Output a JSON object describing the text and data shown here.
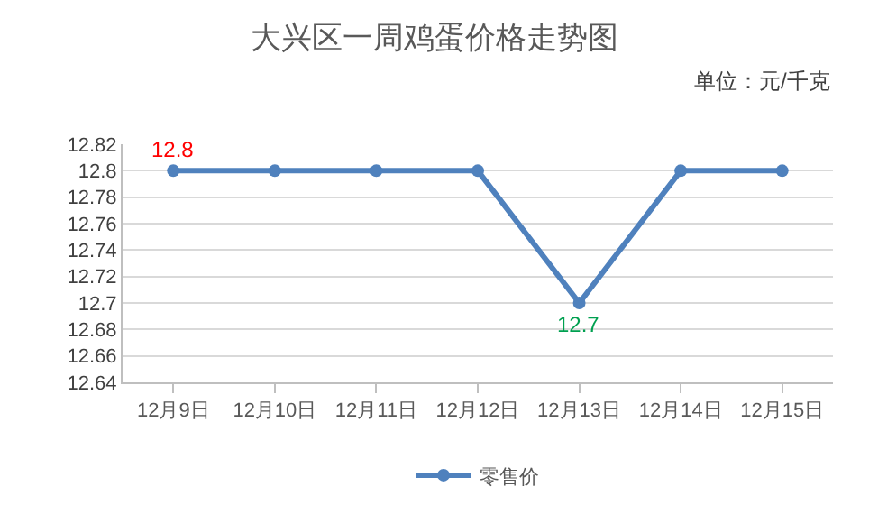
{
  "chart_data": {
    "type": "line",
    "title": "大兴区一周鸡蛋价格走势图",
    "categories": [
      "12月9日",
      "12月10日",
      "12月11日",
      "12月12日",
      "12月13日",
      "12月14日",
      "12月15日"
    ],
    "series": [
      {
        "name": "零售价",
        "color": "#4f81bd",
        "values": [
          12.8,
          12.8,
          12.8,
          12.8,
          12.7,
          12.8,
          12.8
        ]
      }
    ],
    "ylim": [
      12.64,
      12.82
    ],
    "yticks": [
      12.64,
      12.66,
      12.68,
      12.7,
      12.72,
      12.74,
      12.76,
      12.78,
      12.8,
      12.82
    ],
    "annotations": [
      "单位：元/千克",
      {
        "text": "12.8",
        "x": "12月9日",
        "y": 12.8
      },
      {
        "text": "12.7",
        "x": "12月13日",
        "y": 12.7
      }
    ],
    "grid": "y",
    "legend": "bottom",
    "marker": "circle",
    "line_style": "solid"
  }
}
